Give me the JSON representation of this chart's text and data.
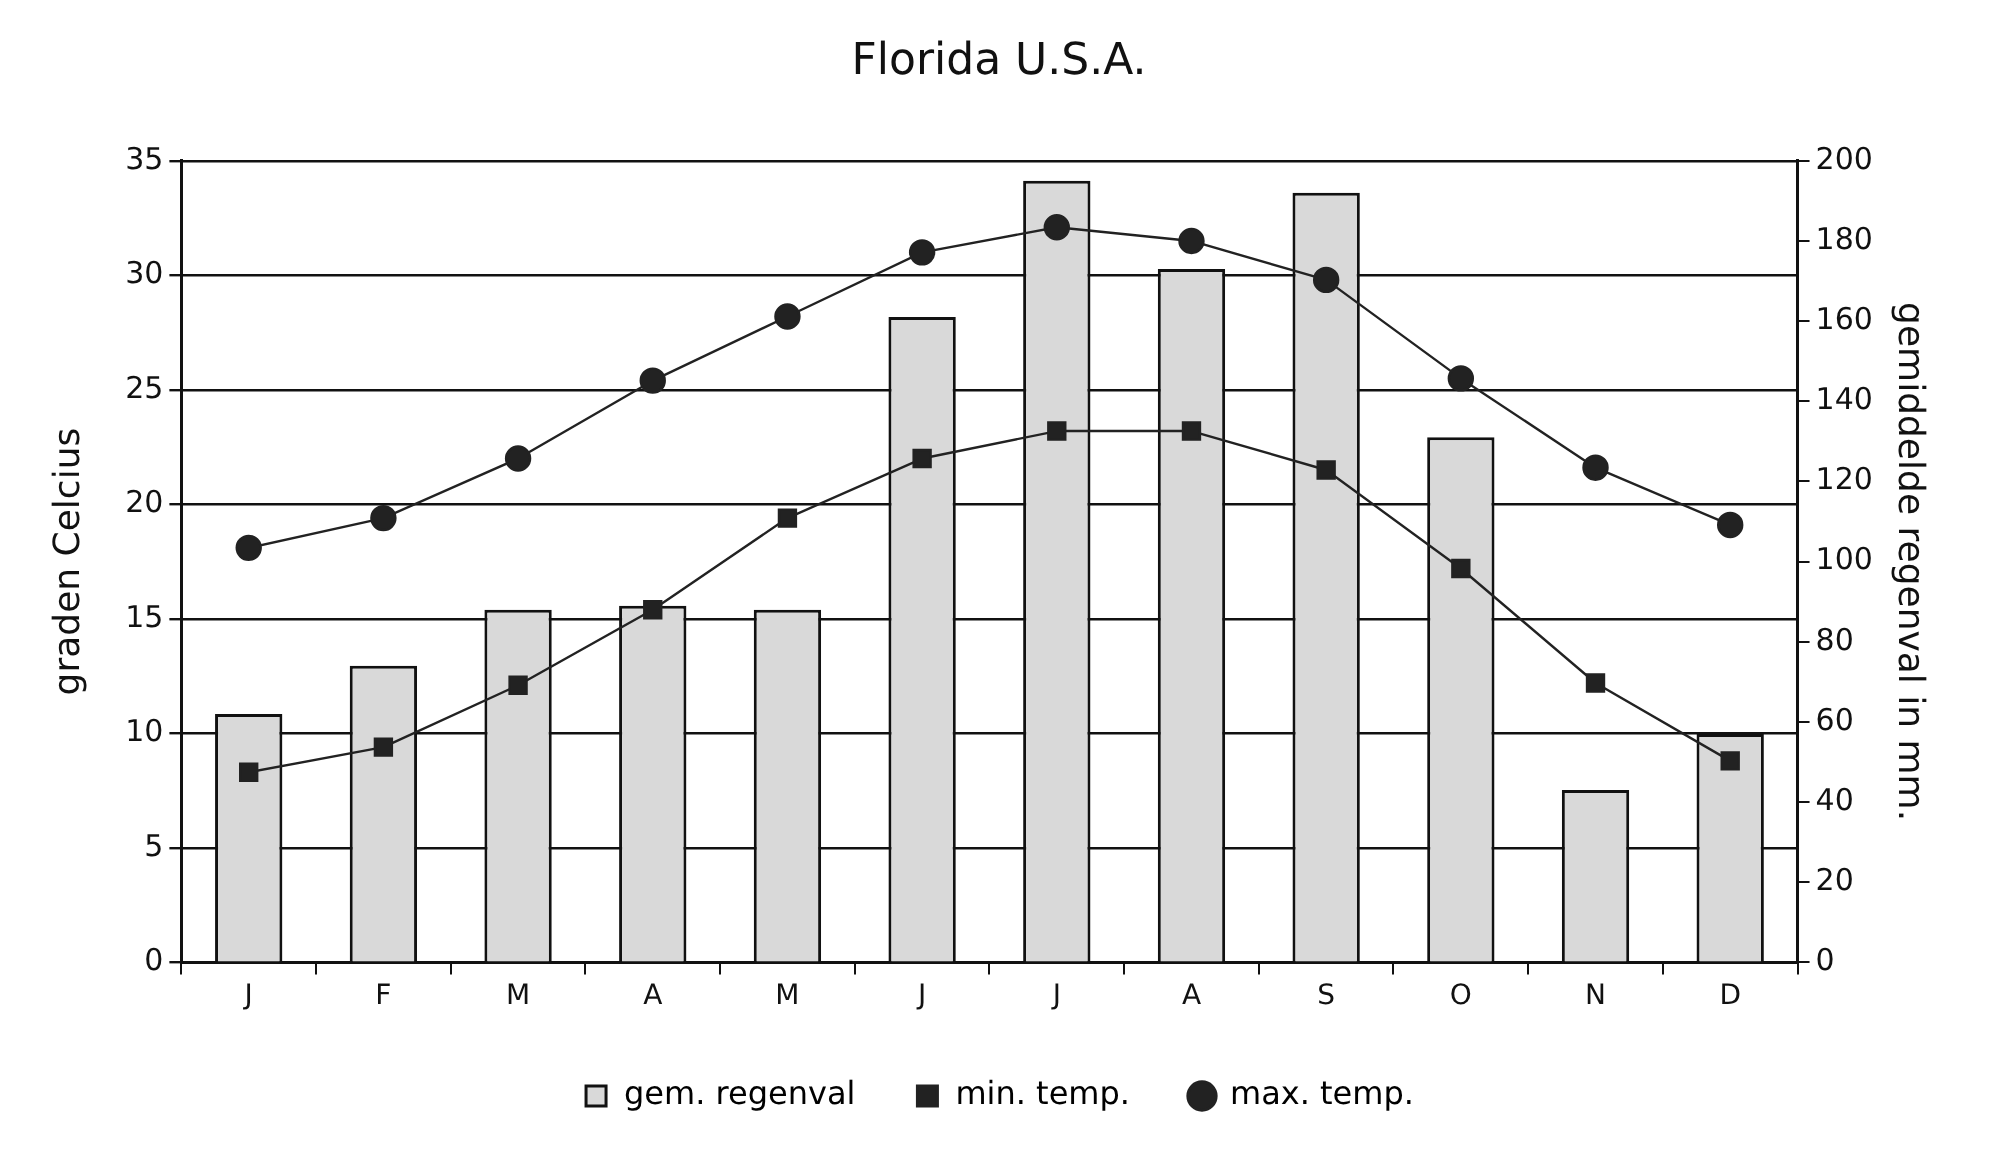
{
  "chart_data": {
    "type": "bar",
    "title": "Florida U.S.A.",
    "ylabel": "graden Celcius",
    "y2label": "gemiddelde regenval in mm.",
    "categories": [
      "J",
      "F",
      "M",
      "A",
      "M",
      "J",
      "J",
      "A",
      "S",
      "O",
      "N",
      "D"
    ],
    "series": [
      {
        "name": "gem. regenval",
        "axis": "y2",
        "color": "#d9d9d9",
        "values": [
          62,
          74,
          88,
          89,
          88,
          161,
          195,
          173,
          192,
          131,
          43,
          57
        ]
      },
      {
        "name": "min. temp.",
        "type": "line",
        "marker": "square",
        "color": "#222222",
        "values": [
          8.3,
          9.4,
          12.1,
          15.4,
          19.4,
          22.0,
          23.2,
          23.2,
          21.5,
          17.2,
          12.2,
          8.8
        ]
      },
      {
        "name": "max. temp.",
        "type": "line",
        "marker": "circle",
        "color": "#222222",
        "values": [
          18.1,
          19.4,
          22.0,
          25.4,
          28.2,
          31.0,
          32.1,
          31.5,
          29.8,
          25.5,
          21.6,
          19.1
        ]
      }
    ],
    "ylim": [
      0,
      35
    ],
    "yticks": [
      0,
      5,
      10,
      15,
      20,
      25,
      30,
      35
    ],
    "y2lim": [
      0,
      200
    ],
    "y2ticks": [
      0,
      20,
      40,
      60,
      80,
      100,
      120,
      140,
      160,
      180,
      200
    ],
    "grid": "y",
    "legend": "bottom"
  }
}
